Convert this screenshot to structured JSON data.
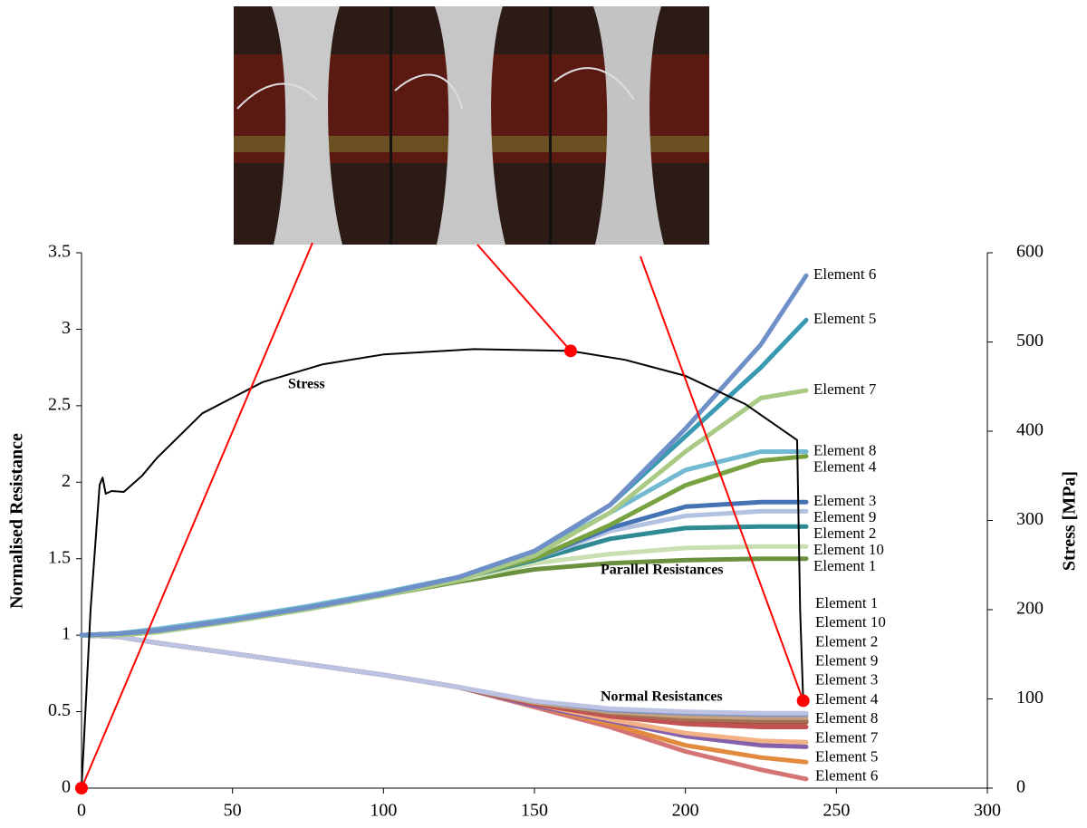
{
  "chart_data": {
    "type": "line",
    "ylabel": "Normalised Resistance",
    "y2label": "Stress [MPa]",
    "xlim": [
      0,
      300
    ],
    "xticks": [
      0,
      50,
      100,
      150,
      200,
      250,
      300
    ],
    "ylim": [
      0,
      3.5
    ],
    "yticks": [
      0,
      0.5,
      1,
      1.5,
      2,
      2.5,
      3,
      3.5
    ],
    "y2lim": [
      0,
      600
    ],
    "y2ticks": [
      0,
      100,
      200,
      300,
      400,
      500,
      600
    ],
    "x": [
      0,
      12,
      25,
      50,
      75,
      100,
      125,
      150,
      175,
      200,
      225,
      240
    ],
    "groups": [
      {
        "name": "Parallel Resistances",
        "series": [
          {
            "name": "Element 6",
            "color": "#6f8fc8",
            "values": [
              1,
              1.01,
              1.03,
              1.1,
              1.18,
              1.27,
              1.38,
              1.55,
              1.85,
              2.35,
              2.9,
              3.35
            ]
          },
          {
            "name": "Element 5",
            "color": "#3a9ab2",
            "values": [
              1,
              1.01,
              1.03,
              1.1,
              1.18,
              1.27,
              1.38,
              1.55,
              1.85,
              2.3,
              2.75,
              3.06
            ]
          },
          {
            "name": "Element 7",
            "color": "#a9c985",
            "values": [
              1,
              1.0,
              1.02,
              1.09,
              1.17,
              1.26,
              1.36,
              1.52,
              1.8,
              2.2,
              2.55,
              2.6
            ]
          },
          {
            "name": "Element 8",
            "color": "#72b9d2",
            "values": [
              1,
              1.01,
              1.04,
              1.11,
              1.19,
              1.28,
              1.38,
              1.54,
              1.8,
              2.08,
              2.2,
              2.2
            ]
          },
          {
            "name": "Element 4",
            "color": "#77a23f",
            "values": [
              1,
              1.01,
              1.03,
              1.1,
              1.18,
              1.27,
              1.37,
              1.5,
              1.72,
              1.98,
              2.14,
              2.17
            ]
          },
          {
            "name": "Element 3",
            "color": "#4373b3",
            "values": [
              1,
              1.01,
              1.03,
              1.1,
              1.18,
              1.27,
              1.37,
              1.5,
              1.7,
              1.84,
              1.87,
              1.87
            ]
          },
          {
            "name": "Element 9",
            "color": "#b3c2e0",
            "values": [
              1,
              1.01,
              1.03,
              1.1,
              1.18,
              1.27,
              1.37,
              1.5,
              1.68,
              1.78,
              1.81,
              1.81
            ]
          },
          {
            "name": "Element 2",
            "color": "#2f8a93",
            "values": [
              1,
              1.01,
              1.04,
              1.1,
              1.18,
              1.27,
              1.37,
              1.49,
              1.63,
              1.7,
              1.71,
              1.71
            ]
          },
          {
            "name": "Element 10",
            "color": "#c9dfb2",
            "values": [
              1,
              1.0,
              1.02,
              1.09,
              1.17,
              1.26,
              1.36,
              1.47,
              1.53,
              1.57,
              1.58,
              1.58
            ]
          },
          {
            "name": "Element 1",
            "color": "#6b9140",
            "values": [
              1,
              1.0,
              1.02,
              1.09,
              1.17,
              1.26,
              1.35,
              1.43,
              1.47,
              1.49,
              1.5,
              1.5
            ]
          }
        ]
      },
      {
        "name": "Normal Resistances",
        "series": [
          {
            "name": "Element 1",
            "color": "#bcc3e2",
            "values": [
              1,
              0.99,
              0.95,
              0.88,
              0.81,
              0.74,
              0.66,
              0.57,
              0.52,
              0.5,
              0.49,
              0.49
            ]
          },
          {
            "name": "Element 10",
            "color": "#8291c2",
            "values": [
              1,
              0.99,
              0.95,
              0.88,
              0.81,
              0.74,
              0.66,
              0.57,
              0.51,
              0.49,
              0.48,
              0.48
            ]
          },
          {
            "name": "Element 2",
            "color": "#c4a27e",
            "values": [
              1,
              0.99,
              0.95,
              0.88,
              0.81,
              0.74,
              0.66,
              0.56,
              0.5,
              0.47,
              0.46,
              0.46
            ]
          },
          {
            "name": "Element 9",
            "color": "#a26f52",
            "values": [
              1,
              0.99,
              0.95,
              0.88,
              0.81,
              0.74,
              0.66,
              0.56,
              0.49,
              0.45,
              0.44,
              0.44
            ]
          },
          {
            "name": "Element 3",
            "color": "#c25252",
            "values": [
              1,
              0.99,
              0.95,
              0.88,
              0.81,
              0.74,
              0.66,
              0.55,
              0.47,
              0.42,
              0.4,
              0.4
            ]
          },
          {
            "name": "Element 4",
            "color": "#a84a3e",
            "values": [
              1,
              0.99,
              0.95,
              0.88,
              0.81,
              0.74,
              0.66,
              0.55,
              0.48,
              0.44,
              0.43,
              0.43
            ]
          },
          {
            "name": "Element 8",
            "color": "#f2b285",
            "values": [
              1,
              0.99,
              0.95,
              0.88,
              0.81,
              0.74,
              0.66,
              0.55,
              0.45,
              0.36,
              0.31,
              0.3
            ]
          },
          {
            "name": "Element 7",
            "color": "#8461aa",
            "values": [
              1,
              0.99,
              0.95,
              0.88,
              0.81,
              0.74,
              0.66,
              0.54,
              0.44,
              0.34,
              0.28,
              0.27
            ]
          },
          {
            "name": "Element 5",
            "color": "#e28a3e",
            "values": [
              1,
              0.99,
              0.95,
              0.88,
              0.81,
              0.74,
              0.66,
              0.54,
              0.42,
              0.28,
              0.2,
              0.17
            ]
          },
          {
            "name": "Element 6",
            "color": "#d47474",
            "values": [
              1,
              0.99,
              0.95,
              0.88,
              0.81,
              0.74,
              0.66,
              0.53,
              0.4,
              0.24,
              0.12,
              0.06
            ]
          }
        ]
      }
    ],
    "stress": {
      "name": "Stress",
      "axis": "y2",
      "color": "#000000",
      "x": [
        0,
        3,
        6,
        7,
        8,
        10,
        14,
        20,
        25,
        40,
        60,
        80,
        100,
        130,
        162,
        180,
        200,
        220,
        237,
        238,
        239
      ],
      "values": [
        0,
        200,
        340,
        348,
        330,
        333,
        332,
        350,
        370,
        420,
        455,
        475,
        486,
        492,
        490,
        480,
        462,
        430,
        390,
        200,
        98
      ]
    },
    "highlights": {
      "axis": "y2",
      "color": "#ff0000",
      "x": [
        0,
        162,
        239
      ],
      "values": [
        0,
        490,
        98
      ]
    }
  }
}
